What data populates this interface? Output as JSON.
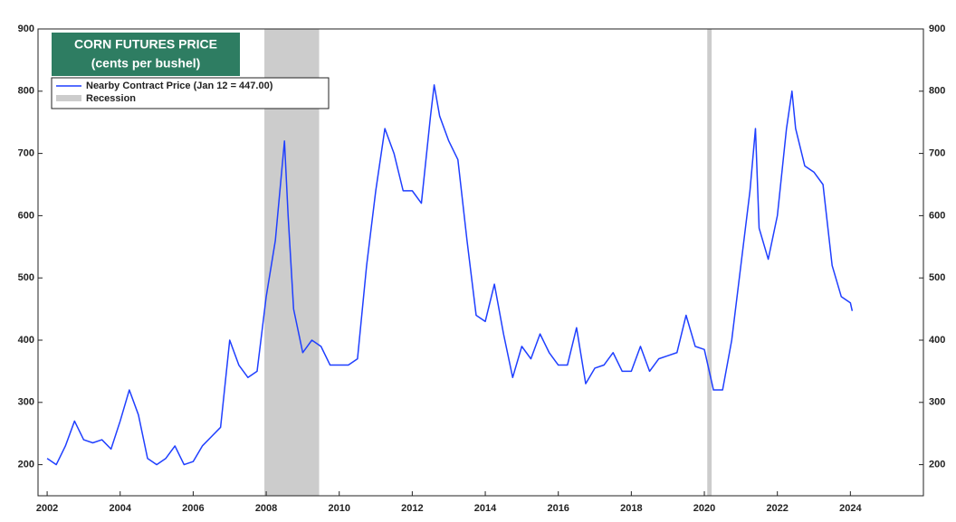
{
  "chart_data": {
    "type": "line",
    "title": "CORN FUTURES PRICE",
    "subtitle": "(cents per bushel)",
    "x": [
      2002.0,
      2002.25,
      2002.5,
      2002.75,
      2003.0,
      2003.25,
      2003.5,
      2003.75,
      2004.0,
      2004.25,
      2004.5,
      2004.75,
      2005.0,
      2005.25,
      2005.5,
      2005.75,
      2006.0,
      2006.25,
      2006.5,
      2006.75,
      2007.0,
      2007.25,
      2007.5,
      2007.75,
      2008.0,
      2008.25,
      2008.5,
      2008.6,
      2008.75,
      2009.0,
      2009.25,
      2009.5,
      2009.75,
      2010.0,
      2010.25,
      2010.5,
      2010.75,
      2011.0,
      2011.25,
      2011.5,
      2011.75,
      2012.0,
      2012.25,
      2012.5,
      2012.6,
      2012.75,
      2013.0,
      2013.25,
      2013.5,
      2013.75,
      2014.0,
      2014.25,
      2014.5,
      2014.75,
      2015.0,
      2015.25,
      2015.5,
      2015.75,
      2016.0,
      2016.25,
      2016.5,
      2016.75,
      2017.0,
      2017.25,
      2017.5,
      2017.75,
      2018.0,
      2018.25,
      2018.5,
      2018.75,
      2019.0,
      2019.25,
      2019.5,
      2019.75,
      2020.0,
      2020.25,
      2020.5,
      2020.75,
      2021.0,
      2021.25,
      2021.4,
      2021.5,
      2021.75,
      2022.0,
      2022.25,
      2022.4,
      2022.5,
      2022.75,
      2023.0,
      2023.25,
      2023.5,
      2023.75,
      2024.0,
      2024.05
    ],
    "series": [
      {
        "name": "Nearby Contract Price (Jan 12 = 447.00)",
        "color": "#1f3fff",
        "values": [
          210,
          200,
          230,
          270,
          240,
          235,
          240,
          225,
          270,
          320,
          280,
          210,
          200,
          210,
          230,
          200,
          205,
          230,
          245,
          260,
          400,
          360,
          340,
          350,
          470,
          560,
          720,
          600,
          450,
          380,
          400,
          390,
          360,
          360,
          360,
          370,
          520,
          640,
          740,
          700,
          640,
          640,
          620,
          760,
          810,
          760,
          720,
          690,
          560,
          440,
          430,
          490,
          410,
          340,
          390,
          370,
          410,
          380,
          360,
          360,
          420,
          330,
          355,
          360,
          380,
          350,
          350,
          390,
          350,
          370,
          375,
          380,
          440,
          390,
          385,
          320,
          320,
          400,
          520,
          640,
          740,
          580,
          530,
          600,
          740,
          800,
          740,
          680,
          670,
          650,
          520,
          470,
          460,
          447
        ]
      }
    ],
    "shading": {
      "name": "Recession",
      "color": "#cccccc",
      "ranges": [
        [
          2007.95,
          2009.45
        ],
        [
          2020.08,
          2020.2
        ]
      ]
    },
    "xlim": [
      2001.75,
      2026
    ],
    "ylim": [
      150,
      900
    ],
    "xticks": [
      2002,
      2004,
      2006,
      2008,
      2010,
      2012,
      2014,
      2016,
      2018,
      2020,
      2022,
      2024
    ],
    "yticks": [
      200,
      300,
      400,
      500,
      600,
      700,
      800,
      900
    ]
  }
}
